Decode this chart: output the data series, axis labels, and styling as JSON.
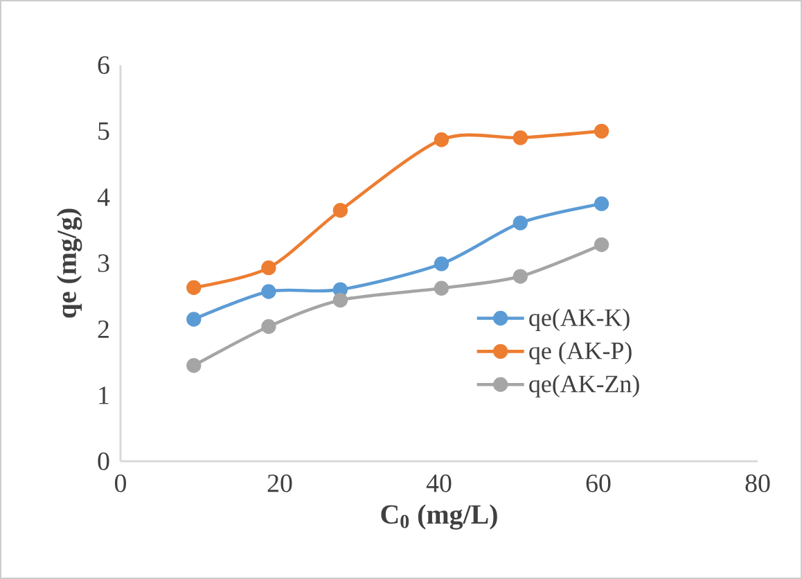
{
  "chart_data": {
    "type": "line",
    "xlabel": "C$_{0}$ (mg/L)",
    "ylabel": "qe (mg/g)",
    "xlim": [
      0,
      80
    ],
    "xticks": [
      0,
      20,
      40,
      60,
      80
    ],
    "ylim": [
      0,
      6
    ],
    "yticks": [
      0,
      1,
      2,
      3,
      4,
      5,
      6
    ],
    "x": [
      9.2,
      18.6,
      27.6,
      40.3,
      50.2,
      60.4
    ],
    "series": [
      {
        "name": "qe(AK-K)",
        "color": "#5b9bd5",
        "values": [
          2.15,
          2.57,
          2.6,
          2.99,
          3.61,
          3.9
        ]
      },
      {
        "name": "qe (AK-P)",
        "color": "#ed7d31",
        "values": [
          2.63,
          2.93,
          3.8,
          4.87,
          4.9,
          5.0
        ]
      },
      {
        "name": "qe(AK-Zn)",
        "color": "#a5a5a5",
        "values": [
          1.45,
          2.04,
          2.44,
          2.62,
          2.8,
          3.28
        ]
      }
    ],
    "legend": "right",
    "grid": false,
    "marker": "circle",
    "line_style": "solid"
  }
}
